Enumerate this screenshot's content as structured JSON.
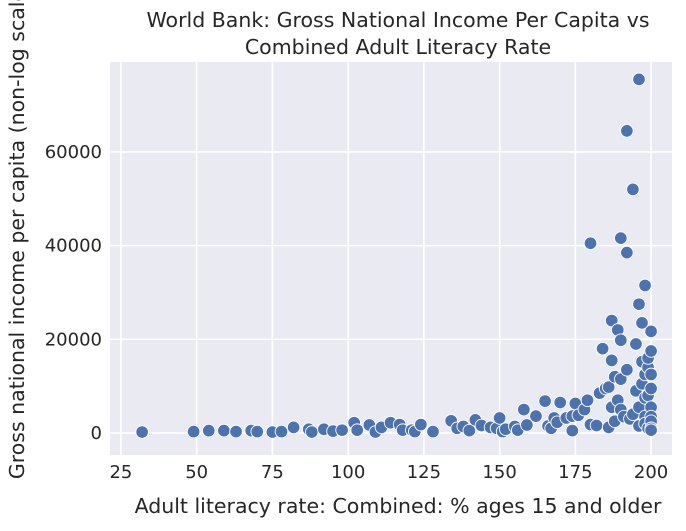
{
  "chart_data": {
    "type": "scatter",
    "title_lines": [
      "World Bank: Gross National Income Per Capita vs",
      "Combined Adult Literacy Rate"
    ],
    "xlabel": "Adult literacy rate: Combined: % ages 15 and older",
    "ylabel": "Gross national income per capita (non-log scale)",
    "xlim": [
      21.4,
      206.9
    ],
    "ylim": [
      -4700,
      79200
    ],
    "xticks": [
      25,
      50,
      75,
      100,
      125,
      150,
      175,
      200
    ],
    "yticks": [
      0,
      20000,
      40000,
      60000
    ],
    "grid": true,
    "marker_color": "#4c72b0",
    "background_color": "#eaeaf2",
    "points": [
      [
        32,
        200
      ],
      [
        49,
        300
      ],
      [
        54,
        500
      ],
      [
        59,
        500
      ],
      [
        63,
        300
      ],
      [
        68,
        500
      ],
      [
        70,
        300
      ],
      [
        75,
        200
      ],
      [
        78,
        300
      ],
      [
        82,
        1200
      ],
      [
        87,
        800
      ],
      [
        88,
        200
      ],
      [
        92,
        800
      ],
      [
        95,
        400
      ],
      [
        98,
        600
      ],
      [
        102,
        2200
      ],
      [
        103,
        600
      ],
      [
        107,
        1700
      ],
      [
        109,
        200
      ],
      [
        111,
        1200
      ],
      [
        114,
        2200
      ],
      [
        117,
        1800
      ],
      [
        118,
        600
      ],
      [
        121,
        600
      ],
      [
        122,
        300
      ],
      [
        124,
        1800
      ],
      [
        128,
        300
      ],
      [
        134,
        2600
      ],
      [
        136,
        1000
      ],
      [
        138,
        1400
      ],
      [
        140,
        500
      ],
      [
        142,
        2800
      ],
      [
        144,
        1600
      ],
      [
        147,
        1200
      ],
      [
        149,
        1000
      ],
      [
        150,
        3200
      ],
      [
        151,
        300
      ],
      [
        152,
        800
      ],
      [
        155,
        1400
      ],
      [
        156,
        600
      ],
      [
        158,
        5000
      ],
      [
        159,
        1700
      ],
      [
        162,
        3600
      ],
      [
        165,
        6800
      ],
      [
        166,
        1500
      ],
      [
        167,
        1000
      ],
      [
        168,
        3200
      ],
      [
        169,
        2300
      ],
      [
        170,
        6500
      ],
      [
        172,
        3200
      ],
      [
        174,
        3600
      ],
      [
        174,
        500
      ],
      [
        175,
        6300
      ],
      [
        176,
        3800
      ],
      [
        178,
        5000
      ],
      [
        179,
        7000
      ],
      [
        180,
        40500
      ],
      [
        180,
        1800
      ],
      [
        182,
        1600
      ],
      [
        183,
        8500
      ],
      [
        184,
        18000
      ],
      [
        185,
        9500
      ],
      [
        186,
        1200
      ],
      [
        186,
        9800
      ],
      [
        187,
        24000
      ],
      [
        187,
        15500
      ],
      [
        187,
        5500
      ],
      [
        188,
        2500
      ],
      [
        188,
        12000
      ],
      [
        189,
        22000
      ],
      [
        189,
        7000
      ],
      [
        190,
        19800
      ],
      [
        190,
        41600
      ],
      [
        190,
        11500
      ],
      [
        190,
        5000
      ],
      [
        191,
        3500
      ],
      [
        192,
        64500
      ],
      [
        192,
        38500
      ],
      [
        192,
        13500
      ],
      [
        193,
        3000
      ],
      [
        194,
        52000
      ],
      [
        194,
        4000
      ],
      [
        195,
        19000
      ],
      [
        195,
        9000
      ],
      [
        196,
        27500
      ],
      [
        196,
        5500
      ],
      [
        196,
        75500
      ],
      [
        196,
        1500
      ],
      [
        197,
        23500
      ],
      [
        197,
        15200
      ],
      [
        197,
        10500
      ],
      [
        198,
        31500
      ],
      [
        198,
        12500
      ],
      [
        198,
        7500
      ],
      [
        198,
        3500
      ],
      [
        198,
        2000
      ],
      [
        199,
        14000
      ],
      [
        199,
        8000
      ],
      [
        199,
        1000
      ],
      [
        199,
        16000
      ],
      [
        200,
        21700
      ],
      [
        200,
        17500
      ],
      [
        200,
        12500
      ],
      [
        200,
        9500
      ],
      [
        200,
        5500
      ],
      [
        200,
        3500
      ],
      [
        200,
        2500
      ],
      [
        200,
        1000
      ],
      [
        200,
        600
      ]
    ]
  }
}
